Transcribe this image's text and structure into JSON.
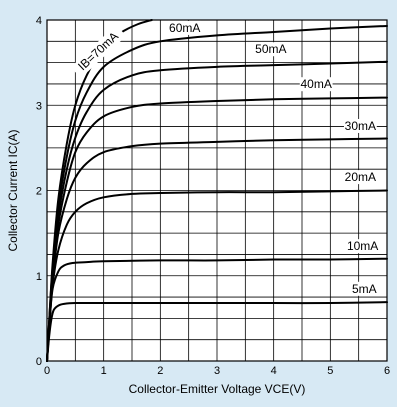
{
  "chart_data": {
    "type": "line",
    "xlabel": "Collector-Emitter Voltage VCE(V)",
    "ylabel": "Collector Current IC(A)",
    "xlim": [
      0,
      6
    ],
    "ylim": [
      0,
      4
    ],
    "x_ticks": [
      "0",
      "1",
      "2",
      "3",
      "4",
      "5",
      "6"
    ],
    "y_ticks": [
      "0",
      "1",
      "2",
      "3",
      "4"
    ],
    "grid": true,
    "series": [
      {
        "name": "5mA",
        "points": [
          [
            0,
            0
          ],
          [
            0.04,
            0.3
          ],
          [
            0.08,
            0.5
          ],
          [
            0.12,
            0.6
          ],
          [
            0.2,
            0.65
          ],
          [
            0.3,
            0.67
          ],
          [
            0.5,
            0.68
          ],
          [
            1,
            0.68
          ],
          [
            2,
            0.68
          ],
          [
            3,
            0.68
          ],
          [
            4,
            0.68
          ],
          [
            5,
            0.68
          ],
          [
            6,
            0.69
          ]
        ]
      },
      {
        "name": "10mA",
        "points": [
          [
            0,
            0
          ],
          [
            0.05,
            0.5
          ],
          [
            0.1,
            0.85
          ],
          [
            0.2,
            1.05
          ],
          [
            0.3,
            1.12
          ],
          [
            0.45,
            1.15
          ],
          [
            0.7,
            1.16
          ],
          [
            1,
            1.17
          ],
          [
            2,
            1.18
          ],
          [
            3,
            1.18
          ],
          [
            4,
            1.19
          ],
          [
            5,
            1.19
          ],
          [
            6,
            1.2
          ]
        ]
      },
      {
        "name": "20mA",
        "points": [
          [
            0,
            0
          ],
          [
            0.05,
            0.5
          ],
          [
            0.1,
            0.9
          ],
          [
            0.2,
            1.3
          ],
          [
            0.35,
            1.6
          ],
          [
            0.5,
            1.75
          ],
          [
            0.7,
            1.85
          ],
          [
            1,
            1.92
          ],
          [
            1.5,
            1.96
          ],
          [
            2,
            1.97
          ],
          [
            3,
            1.98
          ],
          [
            4,
            1.98
          ],
          [
            5,
            1.99
          ],
          [
            6,
            2.0
          ]
        ]
      },
      {
        "name": "30mA",
        "points": [
          [
            0,
            0
          ],
          [
            0.05,
            0.5
          ],
          [
            0.1,
            0.95
          ],
          [
            0.2,
            1.5
          ],
          [
            0.35,
            1.9
          ],
          [
            0.5,
            2.15
          ],
          [
            0.7,
            2.32
          ],
          [
            1,
            2.45
          ],
          [
            1.5,
            2.52
          ],
          [
            2,
            2.55
          ],
          [
            3,
            2.57
          ],
          [
            4,
            2.59
          ],
          [
            5,
            2.6
          ],
          [
            6,
            2.61
          ]
        ]
      },
      {
        "name": "40mA",
        "points": [
          [
            0,
            0
          ],
          [
            0.05,
            0.55
          ],
          [
            0.1,
            1.0
          ],
          [
            0.2,
            1.6
          ],
          [
            0.35,
            2.1
          ],
          [
            0.5,
            2.45
          ],
          [
            0.7,
            2.68
          ],
          [
            1,
            2.87
          ],
          [
            1.5,
            2.98
          ],
          [
            2,
            3.02
          ],
          [
            3,
            3.05
          ],
          [
            4,
            3.07
          ],
          [
            5,
            3.08
          ],
          [
            6,
            3.09
          ]
        ]
      },
      {
        "name": "50mA",
        "points": [
          [
            0,
            0
          ],
          [
            0.05,
            0.55
          ],
          [
            0.1,
            1.05
          ],
          [
            0.2,
            1.7
          ],
          [
            0.35,
            2.25
          ],
          [
            0.5,
            2.62
          ],
          [
            0.7,
            2.92
          ],
          [
            1,
            3.18
          ],
          [
            1.5,
            3.35
          ],
          [
            2,
            3.41
          ],
          [
            3,
            3.45
          ],
          [
            4,
            3.47
          ],
          [
            5,
            3.49
          ],
          [
            6,
            3.51
          ]
        ]
      },
      {
        "name": "60mA",
        "points": [
          [
            0,
            0
          ],
          [
            0.05,
            0.6
          ],
          [
            0.1,
            1.1
          ],
          [
            0.2,
            1.8
          ],
          [
            0.35,
            2.4
          ],
          [
            0.5,
            2.82
          ],
          [
            0.7,
            3.15
          ],
          [
            1,
            3.45
          ],
          [
            1.5,
            3.65
          ],
          [
            2,
            3.75
          ],
          [
            3,
            3.82
          ],
          [
            4,
            3.86
          ],
          [
            5,
            3.9
          ],
          [
            6,
            3.93
          ]
        ]
      },
      {
        "name": "IB=70mA",
        "points": [
          [
            0,
            0
          ],
          [
            0.05,
            0.6
          ],
          [
            0.1,
            1.15
          ],
          [
            0.2,
            1.9
          ],
          [
            0.35,
            2.55
          ],
          [
            0.5,
            3.0
          ],
          [
            0.7,
            3.35
          ],
          [
            1,
            3.68
          ],
          [
            1.3,
            3.85
          ],
          [
            1.6,
            3.95
          ],
          [
            1.85,
            4.0
          ]
        ]
      }
    ]
  }
}
